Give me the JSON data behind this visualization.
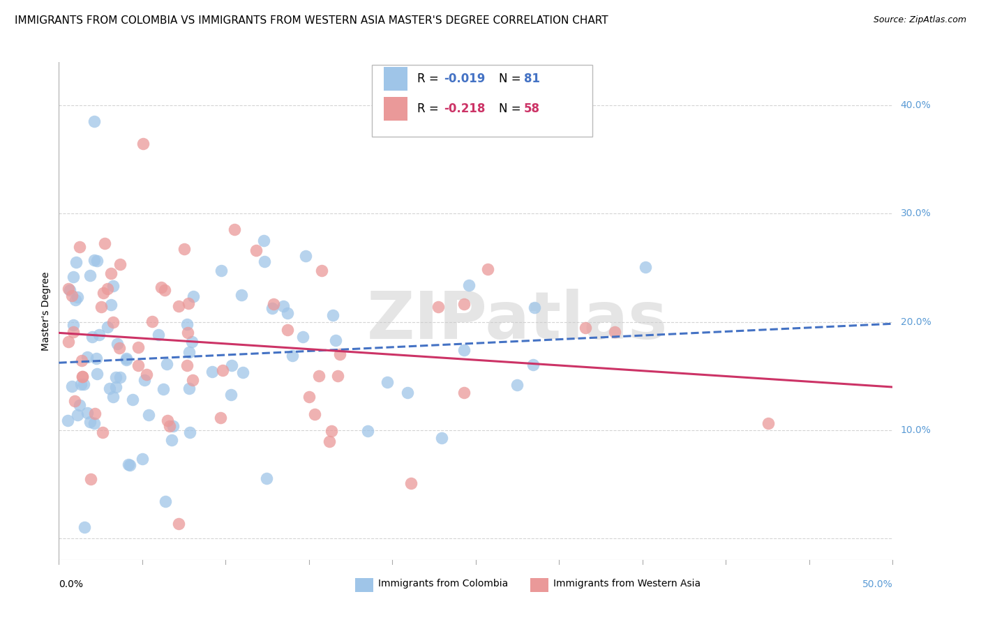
{
  "title": "IMMIGRANTS FROM COLOMBIA VS IMMIGRANTS FROM WESTERN ASIA MASTER'S DEGREE CORRELATION CHART",
  "source": "Source: ZipAtlas.com",
  "ylabel": "Master's Degree",
  "right_yticks": [
    "10.0%",
    "20.0%",
    "30.0%",
    "40.0%"
  ],
  "right_ytick_vals": [
    0.1,
    0.2,
    0.3,
    0.4
  ],
  "xlim": [
    0.0,
    0.5
  ],
  "ylim": [
    -0.02,
    0.44
  ],
  "colombia_color": "#9fc5e8",
  "western_asia_color": "#ea9999",
  "colombia_R": -0.019,
  "colombia_N": 81,
  "western_asia_R": -0.218,
  "western_asia_N": 58,
  "watermark": "ZIPatlas",
  "background_color": "#ffffff",
  "grid_color": "#d0d0d0",
  "title_fontsize": 11,
  "axis_label_fontsize": 10,
  "tick_fontsize": 10,
  "colombia_line_color": "#4472c4",
  "western_asia_line_color": "#cc3366"
}
